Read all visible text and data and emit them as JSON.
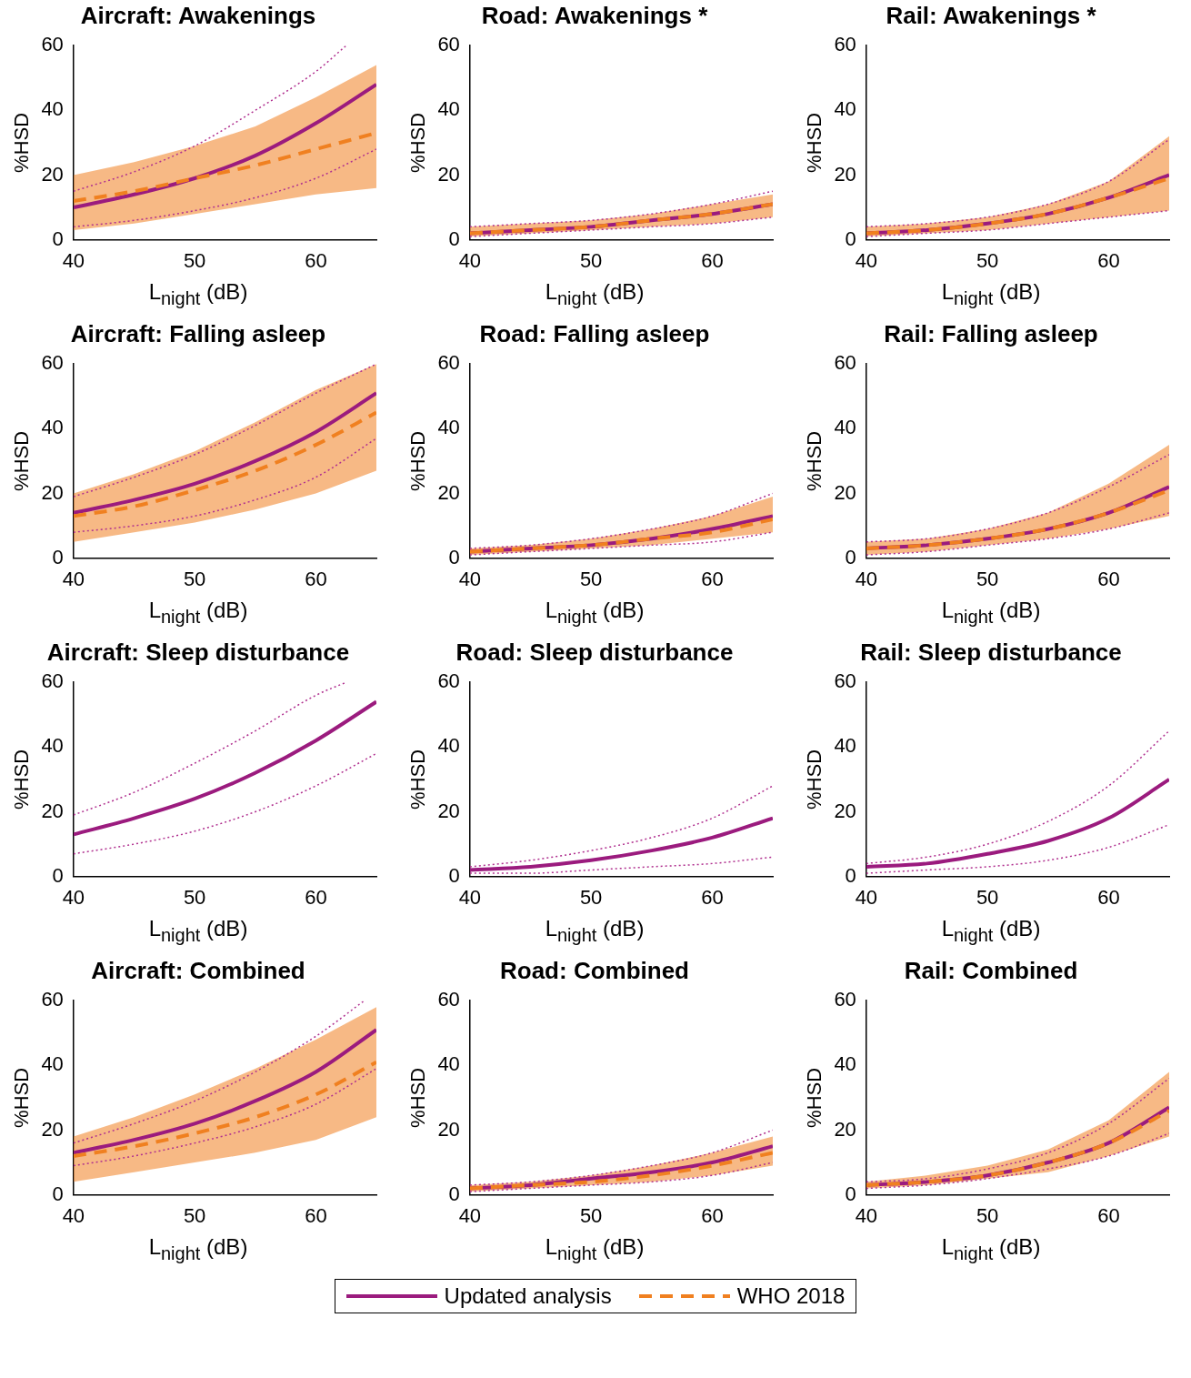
{
  "chart_data": [
    {
      "type": "line",
      "title": "Aircraft: Awakenings",
      "xlabel": "L$_{night}$ (dB)",
      "ylabel": "%HSD",
      "x": [
        40,
        45,
        50,
        55,
        60,
        65
      ],
      "xlim": [
        40,
        65
      ],
      "ylim": [
        0,
        60
      ],
      "xticks": [
        40,
        50,
        60
      ],
      "yticks": [
        0,
        20,
        40,
        60
      ],
      "grid": false,
      "series": [
        {
          "color": "#9b1b7e",
          "values": [
            10,
            14,
            19,
            26,
            36,
            48
          ]
        },
        {
          "color": "#f08020",
          "line_style": "dashed",
          "values": [
            12,
            15,
            19,
            23,
            28,
            33
          ],
          "lower": [
            3,
            5,
            8,
            11,
            14,
            16
          ],
          "upper": [
            20,
            24,
            29,
            35,
            44,
            54
          ]
        },
        {
          "color": "#b0308f",
          "line_style": "dotted",
          "x": [
            40,
            45,
            50,
            55,
            60,
            62.5
          ],
          "values": [
            15,
            21,
            29,
            40,
            52,
            60
          ]
        },
        {
          "color": "#b0308f",
          "line_style": "dotted",
          "values": [
            4,
            6,
            9,
            13,
            19,
            28
          ]
        }
      ]
    },
    {
      "type": "line",
      "title": "Road: Awakenings *",
      "xlabel": "L$_{night}$ (dB)",
      "ylabel": "%HSD",
      "x": [
        40,
        45,
        50,
        55,
        60,
        65
      ],
      "xlim": [
        40,
        65
      ],
      "ylim": [
        0,
        60
      ],
      "xticks": [
        40,
        50,
        60
      ],
      "yticks": [
        0,
        20,
        40,
        60
      ],
      "grid": false,
      "series": [
        {
          "color": "#9b1b7e",
          "values": [
            2,
            3,
            4,
            6,
            8,
            11
          ]
        },
        {
          "color": "#f08020",
          "line_style": "dashed",
          "values": [
            2,
            3,
            4,
            6,
            8,
            11
          ],
          "lower": [
            1,
            2,
            3,
            4,
            5,
            7
          ],
          "upper": [
            4,
            5,
            6,
            8,
            11,
            14
          ]
        },
        {
          "color": "#b0308f",
          "line_style": "dotted",
          "values": [
            4,
            5,
            6,
            8,
            11,
            15
          ]
        },
        {
          "color": "#b0308f",
          "line_style": "dotted",
          "values": [
            1,
            2,
            3,
            4,
            5,
            7
          ]
        }
      ]
    },
    {
      "type": "line",
      "title": "Rail: Awakenings *",
      "xlabel": "L$_{night}$ (dB)",
      "ylabel": "%HSD",
      "x": [
        40,
        45,
        50,
        55,
        60,
        65
      ],
      "xlim": [
        40,
        65
      ],
      "ylim": [
        0,
        60
      ],
      "xticks": [
        40,
        50,
        60
      ],
      "yticks": [
        0,
        20,
        40,
        60
      ],
      "grid": false,
      "series": [
        {
          "color": "#9b1b7e",
          "values": [
            2,
            3,
            5,
            8,
            13,
            20
          ]
        },
        {
          "color": "#f08020",
          "line_style": "dashed",
          "values": [
            2,
            3,
            5,
            8,
            13,
            19
          ],
          "lower": [
            1,
            2,
            3,
            5,
            7,
            9
          ],
          "upper": [
            4,
            5,
            7,
            11,
            18,
            32
          ]
        },
        {
          "color": "#b0308f",
          "line_style": "dotted",
          "values": [
            4,
            5,
            7,
            11,
            18,
            31
          ]
        },
        {
          "color": "#b0308f",
          "line_style": "dotted",
          "values": [
            1,
            2,
            3,
            5,
            7,
            9
          ]
        }
      ]
    },
    {
      "type": "line",
      "title": "Aircraft: Falling asleep",
      "xlabel": "L$_{night}$ (dB)",
      "ylabel": "%HSD",
      "x": [
        40,
        45,
        50,
        55,
        60,
        65
      ],
      "xlim": [
        40,
        65
      ],
      "ylim": [
        0,
        60
      ],
      "xticks": [
        40,
        50,
        60
      ],
      "yticks": [
        0,
        20,
        40,
        60
      ],
      "grid": false,
      "series": [
        {
          "color": "#9b1b7e",
          "values": [
            14,
            18,
            23,
            30,
            39,
            51
          ]
        },
        {
          "color": "#f08020",
          "line_style": "dashed",
          "values": [
            13,
            16,
            21,
            27,
            35,
            45
          ],
          "lower": [
            5,
            8,
            11,
            15,
            20,
            27
          ],
          "upper": [
            20,
            26,
            33,
            42,
            52,
            60
          ]
        },
        {
          "color": "#b0308f",
          "line_style": "dotted",
          "values": [
            19,
            25,
            32,
            41,
            51,
            60
          ]
        },
        {
          "color": "#b0308f",
          "line_style": "dotted",
          "values": [
            8,
            10,
            13,
            18,
            25,
            37
          ]
        }
      ]
    },
    {
      "type": "line",
      "title": "Road: Falling asleep",
      "xlabel": "L$_{night}$ (dB)",
      "ylabel": "%HSD",
      "x": [
        40,
        45,
        50,
        55,
        60,
        65
      ],
      "xlim": [
        40,
        65
      ],
      "ylim": [
        0,
        60
      ],
      "xticks": [
        40,
        50,
        60
      ],
      "yticks": [
        0,
        20,
        40,
        60
      ],
      "grid": false,
      "series": [
        {
          "color": "#9b1b7e",
          "values": [
            2,
            3,
            4,
            6,
            9,
            13
          ]
        },
        {
          "color": "#f08020",
          "line_style": "dashed",
          "values": [
            2,
            3,
            4,
            6,
            8,
            12
          ],
          "lower": [
            1,
            2,
            3,
            4,
            6,
            8
          ],
          "upper": [
            3,
            4,
            6,
            9,
            13,
            19
          ]
        },
        {
          "color": "#b0308f",
          "line_style": "dotted",
          "values": [
            3,
            4,
            6,
            9,
            13,
            20
          ]
        },
        {
          "color": "#b0308f",
          "line_style": "dotted",
          "values": [
            1,
            2,
            3,
            4,
            5,
            8
          ]
        }
      ]
    },
    {
      "type": "line",
      "title": "Rail: Falling asleep",
      "xlabel": "L$_{night}$ (dB)",
      "ylabel": "%HSD",
      "x": [
        40,
        45,
        50,
        55,
        60,
        65
      ],
      "xlim": [
        40,
        65
      ],
      "ylim": [
        0,
        60
      ],
      "xticks": [
        40,
        50,
        60
      ],
      "yticks": [
        0,
        20,
        40,
        60
      ],
      "grid": false,
      "series": [
        {
          "color": "#9b1b7e",
          "values": [
            3,
            4,
            6,
            9,
            14,
            22
          ]
        },
        {
          "color": "#f08020",
          "line_style": "dashed",
          "values": [
            3,
            4,
            6,
            9,
            14,
            21
          ],
          "lower": [
            1,
            2,
            4,
            6,
            9,
            13
          ],
          "upper": [
            5,
            6,
            9,
            14,
            23,
            35
          ]
        },
        {
          "color": "#b0308f",
          "line_style": "dotted",
          "values": [
            5,
            6,
            9,
            14,
            22,
            32
          ]
        },
        {
          "color": "#b0308f",
          "line_style": "dotted",
          "values": [
            1,
            2,
            4,
            6,
            9,
            14
          ]
        }
      ]
    },
    {
      "type": "line",
      "title": "Aircraft: Sleep disturbance",
      "xlabel": "L$_{night}$ (dB)",
      "ylabel": "%HSD",
      "x": [
        40,
        45,
        50,
        55,
        60,
        65
      ],
      "xlim": [
        40,
        65
      ],
      "ylim": [
        0,
        60
      ],
      "xticks": [
        40,
        50,
        60
      ],
      "yticks": [
        0,
        20,
        40,
        60
      ],
      "grid": false,
      "series": [
        {
          "color": "#9b1b7e",
          "values": [
            13,
            18,
            24,
            32,
            42,
            54
          ]
        },
        {
          "color": "#b0308f",
          "line_style": "dotted",
          "x": [
            40,
            45,
            50,
            55,
            60,
            62.5
          ],
          "values": [
            19,
            26,
            35,
            45,
            56,
            60
          ]
        },
        {
          "color": "#b0308f",
          "line_style": "dotted",
          "values": [
            7,
            10,
            14,
            20,
            28,
            38
          ]
        }
      ]
    },
    {
      "type": "line",
      "title": "Road: Sleep disturbance",
      "xlabel": "L$_{night}$ (dB)",
      "ylabel": "%HSD",
      "x": [
        40,
        45,
        50,
        55,
        60,
        65
      ],
      "xlim": [
        40,
        65
      ],
      "ylim": [
        0,
        60
      ],
      "xticks": [
        40,
        50,
        60
      ],
      "yticks": [
        0,
        20,
        40,
        60
      ],
      "grid": false,
      "series": [
        {
          "color": "#9b1b7e",
          "values": [
            2,
            3,
            5,
            8,
            12,
            18
          ]
        },
        {
          "color": "#b0308f",
          "line_style": "dotted",
          "values": [
            3,
            5,
            8,
            12,
            18,
            28
          ]
        },
        {
          "color": "#b0308f",
          "line_style": "dotted",
          "values": [
            1,
            1,
            2,
            3,
            4,
            6
          ]
        }
      ]
    },
    {
      "type": "line",
      "title": "Rail: Sleep disturbance",
      "xlabel": "L$_{night}$ (dB)",
      "ylabel": "%HSD",
      "x": [
        40,
        45,
        50,
        55,
        60,
        65
      ],
      "xlim": [
        40,
        65
      ],
      "ylim": [
        0,
        60
      ],
      "xticks": [
        40,
        50,
        60
      ],
      "yticks": [
        0,
        20,
        40,
        60
      ],
      "grid": false,
      "series": [
        {
          "color": "#9b1b7e",
          "values": [
            3,
            4,
            7,
            11,
            18,
            30
          ]
        },
        {
          "color": "#b0308f",
          "line_style": "dotted",
          "values": [
            4,
            6,
            10,
            17,
            28,
            45
          ]
        },
        {
          "color": "#b0308f",
          "line_style": "dotted",
          "values": [
            1,
            2,
            3,
            5,
            9,
            16
          ]
        }
      ]
    },
    {
      "type": "line",
      "title": "Aircraft: Combined",
      "xlabel": "L$_{night}$ (dB)",
      "ylabel": "%HSD",
      "x": [
        40,
        45,
        50,
        55,
        60,
        65
      ],
      "xlim": [
        40,
        65
      ],
      "ylim": [
        0,
        60
      ],
      "xticks": [
        40,
        50,
        60
      ],
      "yticks": [
        0,
        20,
        40,
        60
      ],
      "grid": false,
      "series": [
        {
          "color": "#9b1b7e",
          "values": [
            13,
            17,
            22,
            29,
            38,
            51
          ]
        },
        {
          "color": "#f08020",
          "line_style": "dashed",
          "values": [
            12,
            15,
            19,
            24,
            31,
            41
          ],
          "lower": [
            4,
            7,
            10,
            13,
            17,
            24
          ],
          "upper": [
            18,
            24,
            31,
            39,
            48,
            58
          ]
        },
        {
          "color": "#b0308f",
          "line_style": "dotted",
          "x": [
            40,
            45,
            50,
            55,
            60,
            64
          ],
          "values": [
            16,
            22,
            29,
            38,
            49,
            60
          ]
        },
        {
          "color": "#b0308f",
          "line_style": "dotted",
          "values": [
            9,
            12,
            16,
            21,
            28,
            39
          ]
        }
      ]
    },
    {
      "type": "line",
      "title": "Road: Combined",
      "xlabel": "L$_{night}$ (dB)",
      "ylabel": "%HSD",
      "x": [
        40,
        45,
        50,
        55,
        60,
        65
      ],
      "xlim": [
        40,
        65
      ],
      "ylim": [
        0,
        60
      ],
      "xticks": [
        40,
        50,
        60
      ],
      "yticks": [
        0,
        20,
        40,
        60
      ],
      "grid": false,
      "series": [
        {
          "color": "#9b1b7e",
          "values": [
            2,
            3,
            5,
            7,
            10,
            15
          ]
        },
        {
          "color": "#f08020",
          "line_style": "dashed",
          "values": [
            2,
            3,
            4,
            6,
            9,
            13
          ],
          "lower": [
            1,
            2,
            3,
            4,
            6,
            9
          ],
          "upper": [
            3,
            4,
            6,
            9,
            13,
            18
          ]
        },
        {
          "color": "#b0308f",
          "line_style": "dotted",
          "values": [
            3,
            4,
            6,
            9,
            13,
            20
          ]
        },
        {
          "color": "#b0308f",
          "line_style": "dotted",
          "values": [
            1,
            2,
            3,
            4,
            6,
            10
          ]
        }
      ]
    },
    {
      "type": "line",
      "title": "Rail: Combined",
      "xlabel": "L$_{night}$ (dB)",
      "ylabel": "%HSD",
      "x": [
        40,
        45,
        50,
        55,
        60,
        65
      ],
      "xlim": [
        40,
        65
      ],
      "ylim": [
        0,
        60
      ],
      "xticks": [
        40,
        50,
        60
      ],
      "yticks": [
        0,
        20,
        40,
        60
      ],
      "grid": false,
      "legend": "bottom",
      "series": [
        {
          "name": "Updated analysis",
          "color": "#9b1b7e",
          "values": [
            3,
            4,
            6,
            10,
            16,
            27
          ]
        },
        {
          "name": "WHO 2018",
          "color": "#f08020",
          "line_style": "dashed",
          "values": [
            3,
            4,
            6,
            10,
            16,
            26
          ],
          "lower": [
            2,
            3,
            5,
            7,
            12,
            18
          ],
          "upper": [
            4,
            6,
            9,
            14,
            23,
            38
          ]
        },
        {
          "color": "#b0308f",
          "line_style": "dotted",
          "values": [
            4,
            5,
            8,
            13,
            22,
            36
          ]
        },
        {
          "color": "#b0308f",
          "line_style": "dotted",
          "values": [
            2,
            3,
            5,
            8,
            12,
            19
          ]
        }
      ]
    }
  ]
}
